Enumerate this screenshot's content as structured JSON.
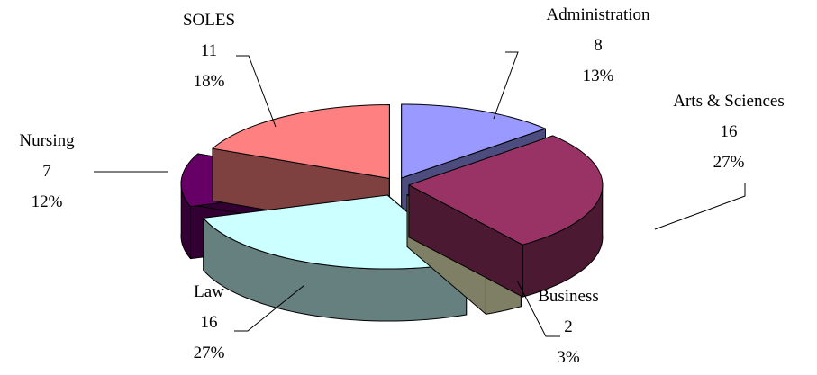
{
  "chart_data": {
    "type": "pie",
    "style": "3d-exploded",
    "slices": [
      {
        "name": "Administration",
        "value": 8,
        "percent": "13%",
        "top": "#9999ff",
        "side": "#4c4c7f"
      },
      {
        "name": "Arts & Sciences",
        "value": 16,
        "percent": "27%",
        "top": "#993366",
        "side": "#4c1933"
      },
      {
        "name": "Business",
        "value": 2,
        "percent": "3%",
        "top": "#ffffcc",
        "side": "#7f7f66"
      },
      {
        "name": "Law",
        "value": 16,
        "percent": "27%",
        "top": "#ccffff",
        "side": "#667f7f"
      },
      {
        "name": "Nursing",
        "value": 7,
        "percent": "12%",
        "top": "#660066",
        "side": "#330033"
      },
      {
        "name": "SOLES",
        "value": 11,
        "percent": "18%",
        "top": "#ff8080",
        "side": "#7f4040"
      }
    ]
  }
}
